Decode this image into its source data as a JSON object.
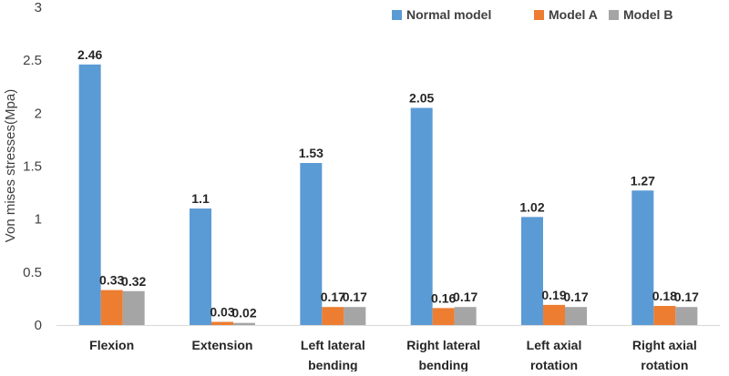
{
  "chart_data": {
    "type": "bar",
    "title": "",
    "xlabel": "",
    "ylabel": "Von mises stresses(Mpa)",
    "ylim": [
      0,
      3
    ],
    "yticks": [
      "0",
      "0.5",
      "1",
      "1.5",
      "2",
      "2.5",
      "3"
    ],
    "grid": false,
    "legend_position": "top-right",
    "categories": [
      [
        "Flexion"
      ],
      [
        "Extension"
      ],
      [
        "Left lateral",
        "bending"
      ],
      [
        "Right lateral",
        "bending"
      ],
      [
        "Left axial",
        "rotation"
      ],
      [
        "Right axial",
        "rotation"
      ]
    ],
    "series": [
      {
        "name": "Normal model",
        "color": "#5B9BD5",
        "values": [
          2.46,
          1.1,
          1.53,
          2.05,
          1.02,
          1.27
        ],
        "labels": [
          "2.46",
          "1.1",
          "1.53",
          "2.05",
          "1.02",
          "1.27"
        ]
      },
      {
        "name": "Model A",
        "color": "#ED7D31",
        "values": [
          0.33,
          0.03,
          0.17,
          0.16,
          0.19,
          0.18
        ],
        "labels": [
          "0.33",
          "0.03",
          "0.17",
          "0.16",
          "0.19",
          "0.18"
        ]
      },
      {
        "name": "Model B",
        "color": "#A5A5A5",
        "values": [
          0.32,
          0.02,
          0.17,
          0.17,
          0.17,
          0.17
        ],
        "labels": [
          "0.32",
          "0.02",
          "0.17",
          "0.17",
          "0.17",
          "0.17"
        ]
      }
    ]
  }
}
